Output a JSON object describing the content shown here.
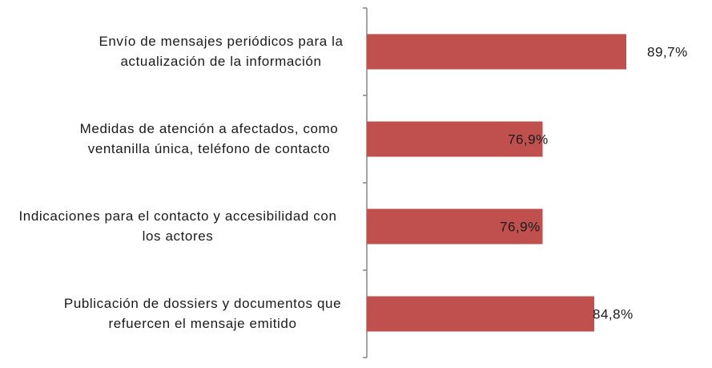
{
  "chart_data": {
    "type": "bar",
    "orientation": "horizontal",
    "categories": [
      [
        "Envío de mensajes periódicos para la",
        "actualización de la información"
      ],
      [
        "Medidas de atención a afectados, como",
        "ventanilla única, teléfono de contacto"
      ],
      [
        "Indicaciones para el contacto y accesibilidad con",
        "los actores"
      ],
      [
        "Publicación de dossiers y documentos que",
        "refuercen el mensaje emitido"
      ]
    ],
    "values": [
      89.7,
      76.9,
      76.9,
      84.8
    ],
    "value_labels": [
      "89,7%",
      "76,9%",
      "76,9%",
      "84,8%"
    ],
    "xlim": [
      50,
      100
    ],
    "grid": false,
    "legend": "none",
    "colors": {
      "bar": "#c0504d",
      "axis": "#868686",
      "text": "#1a1a1a"
    }
  }
}
